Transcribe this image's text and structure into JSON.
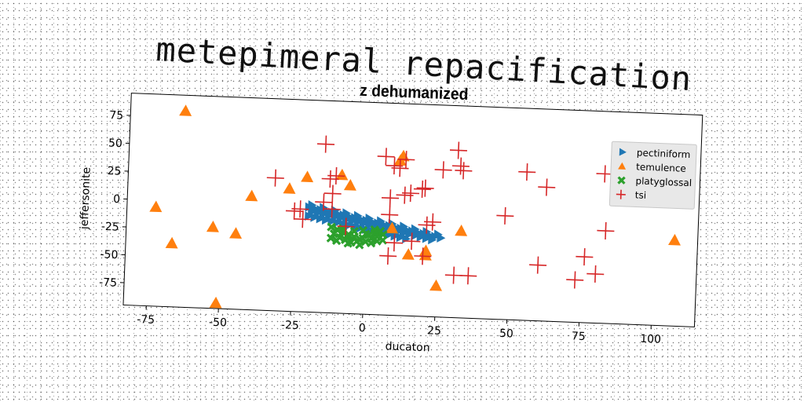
{
  "page": {
    "title": "metepimeral repacification"
  },
  "chart_data": {
    "type": "scatter",
    "title": "z dehumanized",
    "xlabel": "ducaton",
    "ylabel": "jeffersonite",
    "xlim": [
      -83,
      115
    ],
    "ylim": [
      -95,
      95
    ],
    "xticks": [
      -75,
      -50,
      -25,
      0,
      25,
      50,
      75,
      100
    ],
    "yticks": [
      -75,
      -50,
      -25,
      0,
      25,
      50,
      75
    ],
    "grid": false,
    "legend_position": "top-right",
    "series": [
      {
        "name": "pectiniform",
        "marker": "triangle-right",
        "color": "#1f77b4",
        "points": [
          [
            -20,
            -1
          ],
          [
            -18,
            -2
          ],
          [
            -16,
            -3
          ],
          [
            -14,
            -4
          ],
          [
            -12,
            -5
          ],
          [
            -10,
            -6
          ],
          [
            -8,
            -7
          ],
          [
            -6,
            -8
          ],
          [
            -4,
            -9
          ],
          [
            -2,
            -10
          ],
          [
            0,
            -11
          ],
          [
            2,
            -12
          ],
          [
            4,
            -13
          ],
          [
            6,
            -14
          ],
          [
            8,
            -15
          ],
          [
            10,
            -16
          ],
          [
            12,
            -17
          ],
          [
            14,
            -18
          ],
          [
            16,
            -19
          ],
          [
            18,
            -20
          ],
          [
            20,
            -21
          ],
          [
            22,
            -22
          ],
          [
            24,
            -23
          ],
          [
            26,
            -24
          ],
          [
            -19,
            -5
          ],
          [
            -17,
            -6
          ],
          [
            -15,
            -7
          ],
          [
            -13,
            -8
          ],
          [
            -11,
            -9
          ],
          [
            -9,
            -10
          ],
          [
            -7,
            -11
          ],
          [
            -5,
            -12
          ],
          [
            -3,
            -13
          ],
          [
            -1,
            -14
          ],
          [
            1,
            -15
          ],
          [
            3,
            -16
          ],
          [
            5,
            -17
          ],
          [
            7,
            -18
          ],
          [
            9,
            -19
          ],
          [
            11,
            -20
          ],
          [
            13,
            -21
          ],
          [
            15,
            -22
          ],
          [
            17,
            -23
          ],
          [
            19,
            -24
          ],
          [
            21,
            -25
          ],
          [
            23,
            -26
          ],
          [
            -20,
            -9
          ],
          [
            -18,
            -10
          ],
          [
            -16,
            -11
          ],
          [
            -14,
            -12
          ],
          [
            -12,
            -13
          ],
          [
            -10,
            -14
          ],
          [
            -8,
            -15
          ],
          [
            -6,
            -16
          ],
          [
            -4,
            -17
          ],
          [
            -2,
            -18
          ],
          [
            0,
            -19
          ],
          [
            2,
            -20
          ],
          [
            4,
            -21
          ],
          [
            6,
            -22
          ],
          [
            8,
            -23
          ],
          [
            10,
            -24
          ],
          [
            12,
            -25
          ],
          [
            14,
            -26
          ],
          [
            -19,
            1
          ],
          [
            -15,
            -1
          ],
          [
            -11,
            -3
          ],
          [
            -7,
            -5
          ],
          [
            -3,
            -7
          ],
          [
            1,
            -9
          ],
          [
            5,
            -11
          ],
          [
            9,
            -13
          ],
          [
            13,
            -15
          ],
          [
            17,
            -17
          ],
          [
            21,
            -19
          ],
          [
            25,
            -21
          ]
        ]
      },
      {
        "name": "temulence",
        "marker": "triangle-up",
        "color": "#ff7f0e",
        "points": [
          [
            -64,
            81
          ],
          [
            -73,
            -6
          ],
          [
            -67,
            -38
          ],
          [
            -53,
            -22
          ],
          [
            -51,
            -90
          ],
          [
            -45,
            -27
          ],
          [
            -40,
            7
          ],
          [
            -27,
            15
          ],
          [
            -21,
            26
          ],
          [
            -9,
            29
          ],
          [
            -6,
            20
          ],
          [
            11,
            44
          ],
          [
            12,
            48
          ],
          [
            9,
            -17
          ],
          [
            15,
            -40
          ],
          [
            21,
            -36
          ],
          [
            21,
            -40
          ],
          [
            33,
            -17
          ],
          [
            25,
            -67
          ],
          [
            107,
            -18
          ]
        ]
      },
      {
        "name": "platyglossal",
        "marker": "x",
        "color": "#2ca02c",
        "points": [
          [
            -12,
            -18
          ],
          [
            -10,
            -20
          ],
          [
            -8,
            -22
          ],
          [
            -6,
            -24
          ],
          [
            -4,
            -26
          ],
          [
            -2,
            -28
          ],
          [
            0,
            -30
          ],
          [
            2,
            -27
          ],
          [
            4,
            -25
          ],
          [
            6,
            -23
          ],
          [
            -11,
            -24
          ],
          [
            -9,
            -27
          ],
          [
            -7,
            -29
          ],
          [
            -5,
            -31
          ],
          [
            -3,
            -30
          ],
          [
            -1,
            -27
          ],
          [
            1,
            -24
          ],
          [
            3,
            -22
          ],
          [
            5,
            -20
          ],
          [
            -10,
            -30
          ],
          [
            -6,
            -32
          ],
          [
            -2,
            -33
          ],
          [
            2,
            -31
          ],
          [
            4,
            -29
          ],
          [
            -8,
            -19
          ],
          [
            -4,
            -21
          ],
          [
            0,
            -23
          ],
          [
            3,
            -19
          ],
          [
            -12,
            -28
          ],
          [
            6,
            -28
          ],
          [
            -1,
            -20
          ],
          [
            -6,
            -26
          ]
        ]
      },
      {
        "name": "tsi",
        "marker": "plus",
        "color": "#d62728",
        "points": [
          [
            -15,
            56
          ],
          [
            -32,
            24
          ],
          [
            -25,
            -5
          ],
          [
            -23,
            -3
          ],
          [
            -22,
            -12
          ],
          [
            -15,
            4
          ],
          [
            -12,
            -2
          ],
          [
            -13,
            25
          ],
          [
            -12,
            12
          ],
          [
            -11,
            28
          ],
          [
            -7,
            -17
          ],
          [
            6,
            47
          ],
          [
            9,
            39
          ],
          [
            8,
            10
          ],
          [
            8,
            -42
          ],
          [
            10,
            -30
          ],
          [
            11,
            37
          ],
          [
            13,
            45
          ],
          [
            13,
            13
          ],
          [
            15,
            15
          ],
          [
            16,
            -28
          ],
          [
            19,
            19
          ],
          [
            20,
            20
          ],
          [
            20,
            -41
          ],
          [
            21,
            -13
          ],
          [
            23,
            -10
          ],
          [
            26,
            37
          ],
          [
            31,
            55
          ],
          [
            32,
            41
          ],
          [
            33,
            37
          ],
          [
            31,
            -57
          ],
          [
            36,
            -57
          ],
          [
            48,
            -2
          ],
          [
            55,
            38
          ],
          [
            60,
            -45
          ],
          [
            62,
            25
          ],
          [
            73,
            -57
          ],
          [
            76,
            -36
          ],
          [
            80,
            -51
          ],
          [
            83,
            -12
          ],
          [
            82,
            39
          ],
          [
            8,
            -5
          ]
        ]
      }
    ]
  }
}
